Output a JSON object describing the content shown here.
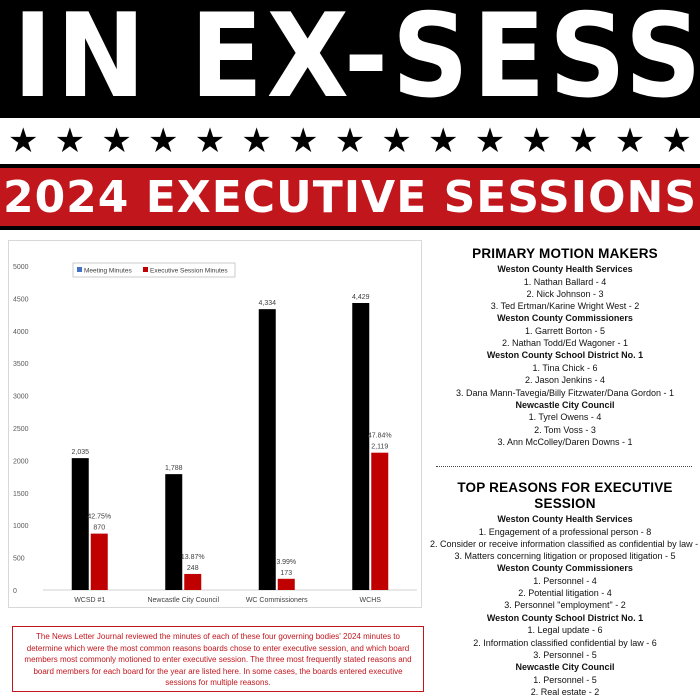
{
  "banner": {
    "title": "IN EX-SESS"
  },
  "stars": [
    "★",
    "★",
    "★",
    "★",
    "★",
    "★",
    "★",
    "★",
    "★",
    "★",
    "★",
    "★",
    "★",
    "★",
    "★"
  ],
  "subtitle": "2024 EXECUTIVE SESSIONS",
  "colors": {
    "red": "#c2161d",
    "black": "#000000",
    "meeting_series": "#000000",
    "executive_series": "#c00000",
    "legend_meeting_swatch": "#4472c4"
  },
  "chart_data": {
    "type": "bar",
    "categories": [
      "WCSD #1",
      "Newcastle City Council",
      "WC Commissioners",
      "WCHS"
    ],
    "series": [
      {
        "name": "Meeting Minutes",
        "values": [
          2035,
          1788,
          4334,
          4429
        ],
        "labels": [
          "2,035",
          "1,788",
          "4,334",
          "4,429"
        ]
      },
      {
        "name": "Executive Session Minutes",
        "values": [
          870,
          248,
          173,
          2119
        ],
        "labels": [
          "870",
          "248",
          "173",
          "2,119"
        ]
      }
    ],
    "percent_labels": [
      "42.75%",
      "13.87%",
      "3.99%",
      "47.84%"
    ],
    "yticks": [
      0,
      500,
      1000,
      1500,
      2000,
      2500,
      3000,
      3500,
      4000,
      4500,
      5000
    ],
    "ylim": [
      0,
      5000
    ],
    "legend": "top",
    "grid": false
  },
  "note": "The News Letter Journal reviewed the minutes of each of these four governing bodies' 2024 minutes to determine which were the most common reasons boards chose to enter executive session, and which board members most commonly motioned to enter executive session. The three most frequently stated reasons and board members for each board for the year are listed here. In some cases, the boards entered executive sessions for multiple reasons.",
  "motion_makers": {
    "title": "PRIMARY MOTION MAKERS",
    "groups": [
      {
        "name": "Weston County Health Services",
        "items": [
          "1. Nathan Ballard - 4",
          "2. Nick Johnson - 3",
          "3. Ted Ertman/Karine Wright West - 2"
        ]
      },
      {
        "name": "Weston County Commissioners",
        "items": [
          "1. Garrett Borton - 5",
          "2. Nathan Todd/Ed Wagoner - 1"
        ]
      },
      {
        "name": "Weston County School District No. 1",
        "items": [
          "1. Tina Chick - 6",
          "2. Jason Jenkins - 4",
          "3. Dana Mann-Tavegia/Billy Fitzwater/Dana Gordon - 1"
        ]
      },
      {
        "name": "Newcastle City Council",
        "items": [
          "1. Tyrel Owens -  4",
          "2. Tom Voss - 3",
          "3. Ann McColley/Daren Downs - 1"
        ]
      }
    ]
  },
  "top_reasons": {
    "title": "TOP REASONS FOR EXECUTIVE SESSION",
    "groups": [
      {
        "name": "Weston County Health Services",
        "items": [
          "1. Engagement of a professional person - 8",
          "2. Consider or receive information classified as confidential by law - 6",
          "3. Matters concerning litigation or proposed litigation -  5"
        ]
      },
      {
        "name": "Weston County Commissioners",
        "items": [
          "1. Personnel - 4",
          "2. Potential litigation - 4",
          "3. Personnel \"employment\" - 2"
        ]
      },
      {
        "name": "Weston County School District No. 1",
        "items": [
          "1. Legal update - 6",
          "2. Information classified confidential by law - 6",
          "3. Personnel - 5"
        ]
      },
      {
        "name": "Newcastle City Council",
        "items": [
          "1. Personnel - 5",
          "2. Real estate - 2"
        ]
      }
    ]
  }
}
